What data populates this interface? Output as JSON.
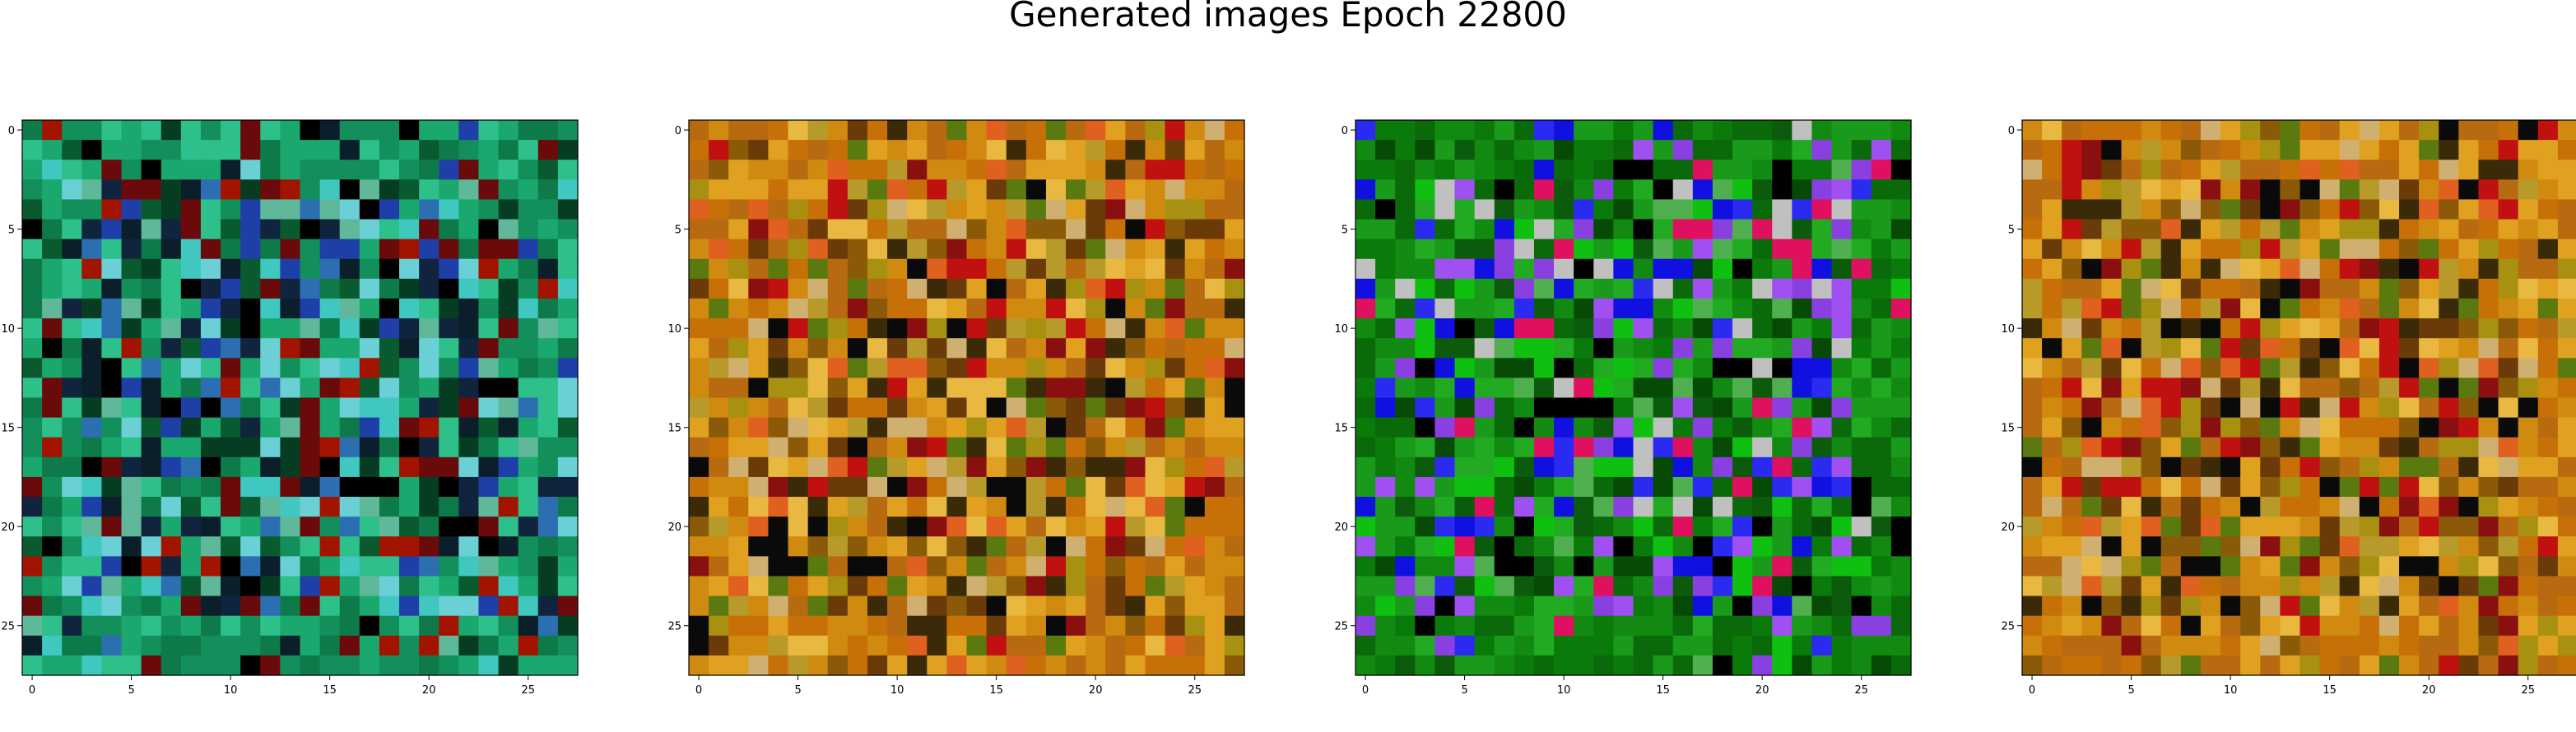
{
  "figure": {
    "title": "Generated images Epoch 22800"
  },
  "chart_data": [
    {
      "type": "heatmap",
      "subtype": "rgb-image",
      "grid": false,
      "xticks": [
        "0",
        "5",
        "10",
        "15",
        "20",
        "25"
      ],
      "yticks": [
        "0",
        "5",
        "10",
        "15",
        "20",
        "25"
      ],
      "xlim": [
        -0.5,
        27.5
      ],
      "ylim": [
        27.5,
        -0.5
      ],
      "size": [
        28,
        28
      ],
      "palette": [
        "#0e7a4a",
        "#128f5a",
        "#1aa86e",
        "#2ec08a",
        "#0a5a30",
        "#063d22",
        "#0b1f2a",
        "#10243d",
        "#3fc7c0",
        "#6ad0d6",
        "#2c6fb0",
        "#1f3fa8",
        "#a21400",
        "#6a0a0a",
        "#000000",
        "#5fb89a"
      ],
      "base": "#0f8a55",
      "accent_color": "#12a366"
    },
    {
      "type": "heatmap",
      "subtype": "rgb-image",
      "grid": false,
      "xticks": [
        "0",
        "5",
        "10",
        "15",
        "20",
        "25"
      ],
      "yticks": [
        "0",
        "5",
        "10",
        "15",
        "20",
        "25"
      ],
      "xlim": [
        -0.5,
        27.5
      ],
      "ylim": [
        27.5,
        -0.5
      ],
      "size": [
        28,
        28
      ],
      "palette": [
        "#d08a10",
        "#e0a020",
        "#c87008",
        "#b86a10",
        "#e8b840",
        "#a89010",
        "#8a5a08",
        "#6a3a08",
        "#3a2a08",
        "#8a1010",
        "#c01010",
        "#0a0a0a",
        "#5a7a10",
        "#d0b070",
        "#e06020",
        "#b89a2a"
      ],
      "base": "#d08a10",
      "accent_color": "#c8740c"
    },
    {
      "type": "heatmap",
      "subtype": "rgb-image",
      "grid": false,
      "xticks": [
        "0",
        "5",
        "10",
        "15",
        "20",
        "25"
      ],
      "yticks": [
        "0",
        "5",
        "10",
        "15",
        "20",
        "25"
      ],
      "xlim": [
        -0.5,
        27.5
      ],
      "ylim": [
        27.5,
        -0.5
      ],
      "size": [
        28,
        28
      ],
      "palette": [
        "#0a7a0a",
        "#128a12",
        "#0a6a0a",
        "#1a9a1a",
        "#064a06",
        "#0c5a0c",
        "#22aa22",
        "#10c010",
        "#1010e0",
        "#2a2af0",
        "#8a40e0",
        "#a050f0",
        "#e01060",
        "#c0c0c0",
        "#000000",
        "#50b050"
      ],
      "base": "#0e7a0e",
      "accent_color": "#1a1ae0"
    },
    {
      "type": "heatmap",
      "subtype": "rgb-image",
      "grid": false,
      "xticks": [
        "0",
        "5",
        "10",
        "15",
        "20",
        "25"
      ],
      "yticks": [
        "0",
        "5",
        "10",
        "15",
        "20",
        "25"
      ],
      "xlim": [
        -0.5,
        27.5
      ],
      "ylim": [
        27.5,
        -0.5
      ],
      "size": [
        28,
        28
      ],
      "palette": [
        "#d08a10",
        "#e0a020",
        "#c87008",
        "#b86a10",
        "#e8b840",
        "#a89010",
        "#8a5a08",
        "#6a3a08",
        "#3a2a08",
        "#8a1010",
        "#c01010",
        "#0a0a0a",
        "#5a7a10",
        "#d0b070",
        "#e06020",
        "#b89a2a"
      ],
      "base": "#d08a10",
      "accent_color": "#c8740c"
    }
  ]
}
